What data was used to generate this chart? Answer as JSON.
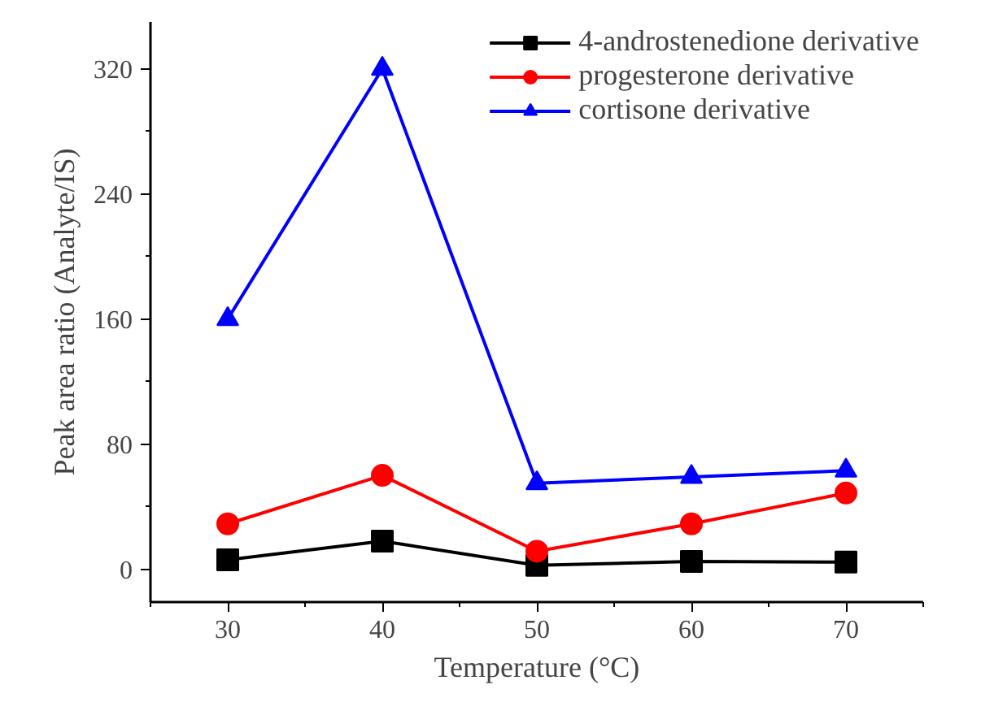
{
  "chart_data": {
    "type": "line",
    "xlabel": "Temperature (°C)",
    "ylabel": "Peak area ratio (Analyte/IS)",
    "x": [
      30,
      40,
      50,
      60,
      70
    ],
    "series": [
      {
        "name": "4-androstenedione derivative",
        "color": "#000000",
        "marker": "square",
        "values": [
          6,
          18,
          2.5,
          5,
          4.6
        ]
      },
      {
        "name": "progesterone derivative",
        "color": "#ff0000",
        "marker": "circle",
        "values": [
          29,
          60,
          11.5,
          29,
          48.7
        ]
      },
      {
        "name": "cortisone derivative",
        "color": "#0000ff",
        "marker": "triangle",
        "values": [
          160,
          320,
          55,
          59,
          63
        ]
      }
    ],
    "xlim": [
      25,
      75
    ],
    "ylim": [
      -21,
      350
    ],
    "xticks": [
      30,
      40,
      50,
      60,
      70
    ],
    "yticks": [
      0,
      80,
      160,
      240,
      320
    ],
    "grid": false,
    "legend": "top right",
    "line_style": "solid"
  }
}
